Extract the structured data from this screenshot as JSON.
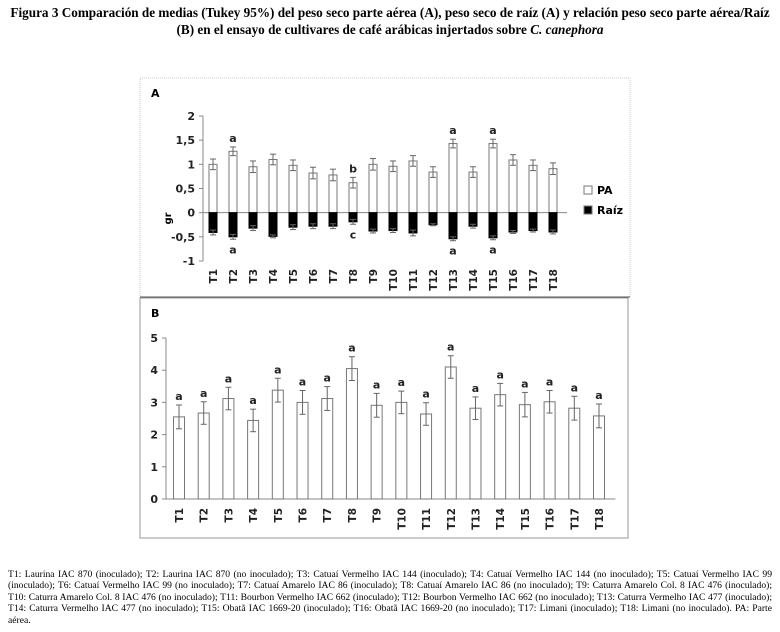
{
  "figure": {
    "title_main": "Figura 3 Comparación de medias (Tukey 95%) del peso seco parte aérea (A), peso seco de raíz (A) y relación peso seco parte aérea/Raíz (B) en el ensayo de cultivares de café arábicas injertados sobre ",
    "title_italic": "C. canephora",
    "caption": "T1: Laurina IAC 870 (inoculado); T2: Laurina IAC 870 (no inoculado); T3: Catuaí Vermelho IAC 144 (inoculado); T4: Catuaí Vermelho IAC 144 (no inoculado); T5: Catuaí Vermelho IAC 99 (inoculado); T6: Catuaí Vermelho IAC 99 (no inoculado); T7: Catuaí Amarelo IAC 86 (inoculado); T8: Catuaí Amarelo IAC 86 (no inoculado); T9: Caturra Amarelo Col. 8 IAC 476 (inoculado); T10: Caturra Amarelo Col. 8 IAC 476 (no inoculado); T11: Bourbon Vermelho IAC 662 (inoculado); T12: Bourbon Vermelho IAC 662 (no inoculado); T13: Caturra Vermelho IAC 477 (inoculado); T14: Caturra Vermelho IAC 477 (no inoculado); T15: Obatã IAC 1669-20 (inoculado); T16: Obatã IAC 1669-20 (no inoculado); T17: Limani (inoculado); T18: Limani (no inoculado). PA: Parte aérea."
  },
  "chart_data": [
    {
      "type": "bar",
      "panel_label": "A",
      "categories": [
        "T1",
        "T2",
        "T3",
        "T4",
        "T5",
        "T6",
        "T7",
        "T8",
        "T9",
        "T10",
        "T11",
        "T12",
        "T13",
        "T14",
        "T15",
        "T16",
        "T17",
        "T18"
      ],
      "ylabel": "gr",
      "ylim": [
        -1,
        2
      ],
      "yticks": [
        "-1",
        "-0,5",
        "0",
        "0,5",
        "1",
        "1,5",
        "2"
      ],
      "ytick_values": [
        -1,
        -0.5,
        0,
        0.5,
        1,
        1.5,
        2
      ],
      "legend_position": "right",
      "series": [
        {
          "name": "PA",
          "color": "#ffffff",
          "values": [
            1.0,
            1.27,
            0.95,
            1.1,
            0.98,
            0.82,
            0.78,
            0.62,
            1.0,
            0.96,
            1.07,
            0.84,
            1.43,
            0.84,
            1.43,
            1.09,
            0.98,
            0.91
          ],
          "errors": [
            0.11,
            0.09,
            0.12,
            0.11,
            0.11,
            0.12,
            0.12,
            0.11,
            0.12,
            0.11,
            0.11,
            0.11,
            0.09,
            0.11,
            0.09,
            0.11,
            0.11,
            0.12
          ],
          "letters": [
            "",
            "a",
            "",
            "",
            "",
            "",
            "",
            "b",
            "",
            "",
            "",
            "",
            "a",
            "",
            "a",
            "",
            "",
            ""
          ]
        },
        {
          "name": "Raíz",
          "color": "#000000",
          "values": [
            -0.41,
            -0.5,
            -0.32,
            -0.49,
            -0.3,
            -0.28,
            -0.28,
            -0.19,
            -0.38,
            -0.37,
            -0.42,
            -0.25,
            -0.54,
            -0.28,
            -0.52,
            -0.4,
            -0.37,
            -0.4
          ],
          "errors": [
            0.05,
            0.05,
            0.05,
            0.03,
            0.05,
            0.05,
            0.05,
            0.05,
            0.04,
            0.04,
            0.06,
            0.02,
            0.04,
            0.04,
            0.04,
            0.03,
            0.03,
            0.04
          ],
          "letters": [
            "",
            "a",
            "",
            "",
            "",
            "",
            "",
            "c",
            "",
            "",
            "",
            "",
            "a",
            "",
            "a",
            "",
            "",
            ""
          ]
        }
      ]
    },
    {
      "type": "bar",
      "panel_label": "B",
      "categories": [
        "T1",
        "T2",
        "T3",
        "T4",
        "T5",
        "T6",
        "T7",
        "T8",
        "T9",
        "T10",
        "T11",
        "T12",
        "T13",
        "T14",
        "T15",
        "T16",
        "T17",
        "T18"
      ],
      "ylim": [
        0,
        5
      ],
      "yticks": [
        "0",
        "1",
        "2",
        "3",
        "4",
        "5"
      ],
      "ytick_values": [
        0,
        1,
        2,
        3,
        4,
        5
      ],
      "series": [
        {
          "name": "PA/Raíz",
          "values": [
            2.55,
            2.67,
            3.12,
            2.44,
            3.38,
            3.0,
            3.12,
            4.05,
            2.91,
            3.0,
            2.64,
            4.1,
            2.82,
            3.24,
            2.93,
            3.02,
            2.82,
            2.58
          ],
          "errors": [
            0.37,
            0.35,
            0.35,
            0.35,
            0.37,
            0.37,
            0.37,
            0.37,
            0.37,
            0.35,
            0.35,
            0.35,
            0.35,
            0.35,
            0.38,
            0.35,
            0.37,
            0.37
          ],
          "letters": [
            "a",
            "a",
            "a",
            "a",
            "a",
            "a",
            "a",
            "a",
            "a",
            "a",
            "a",
            "a",
            "a",
            "a",
            "a",
            "a",
            "a",
            "a"
          ]
        }
      ]
    }
  ]
}
